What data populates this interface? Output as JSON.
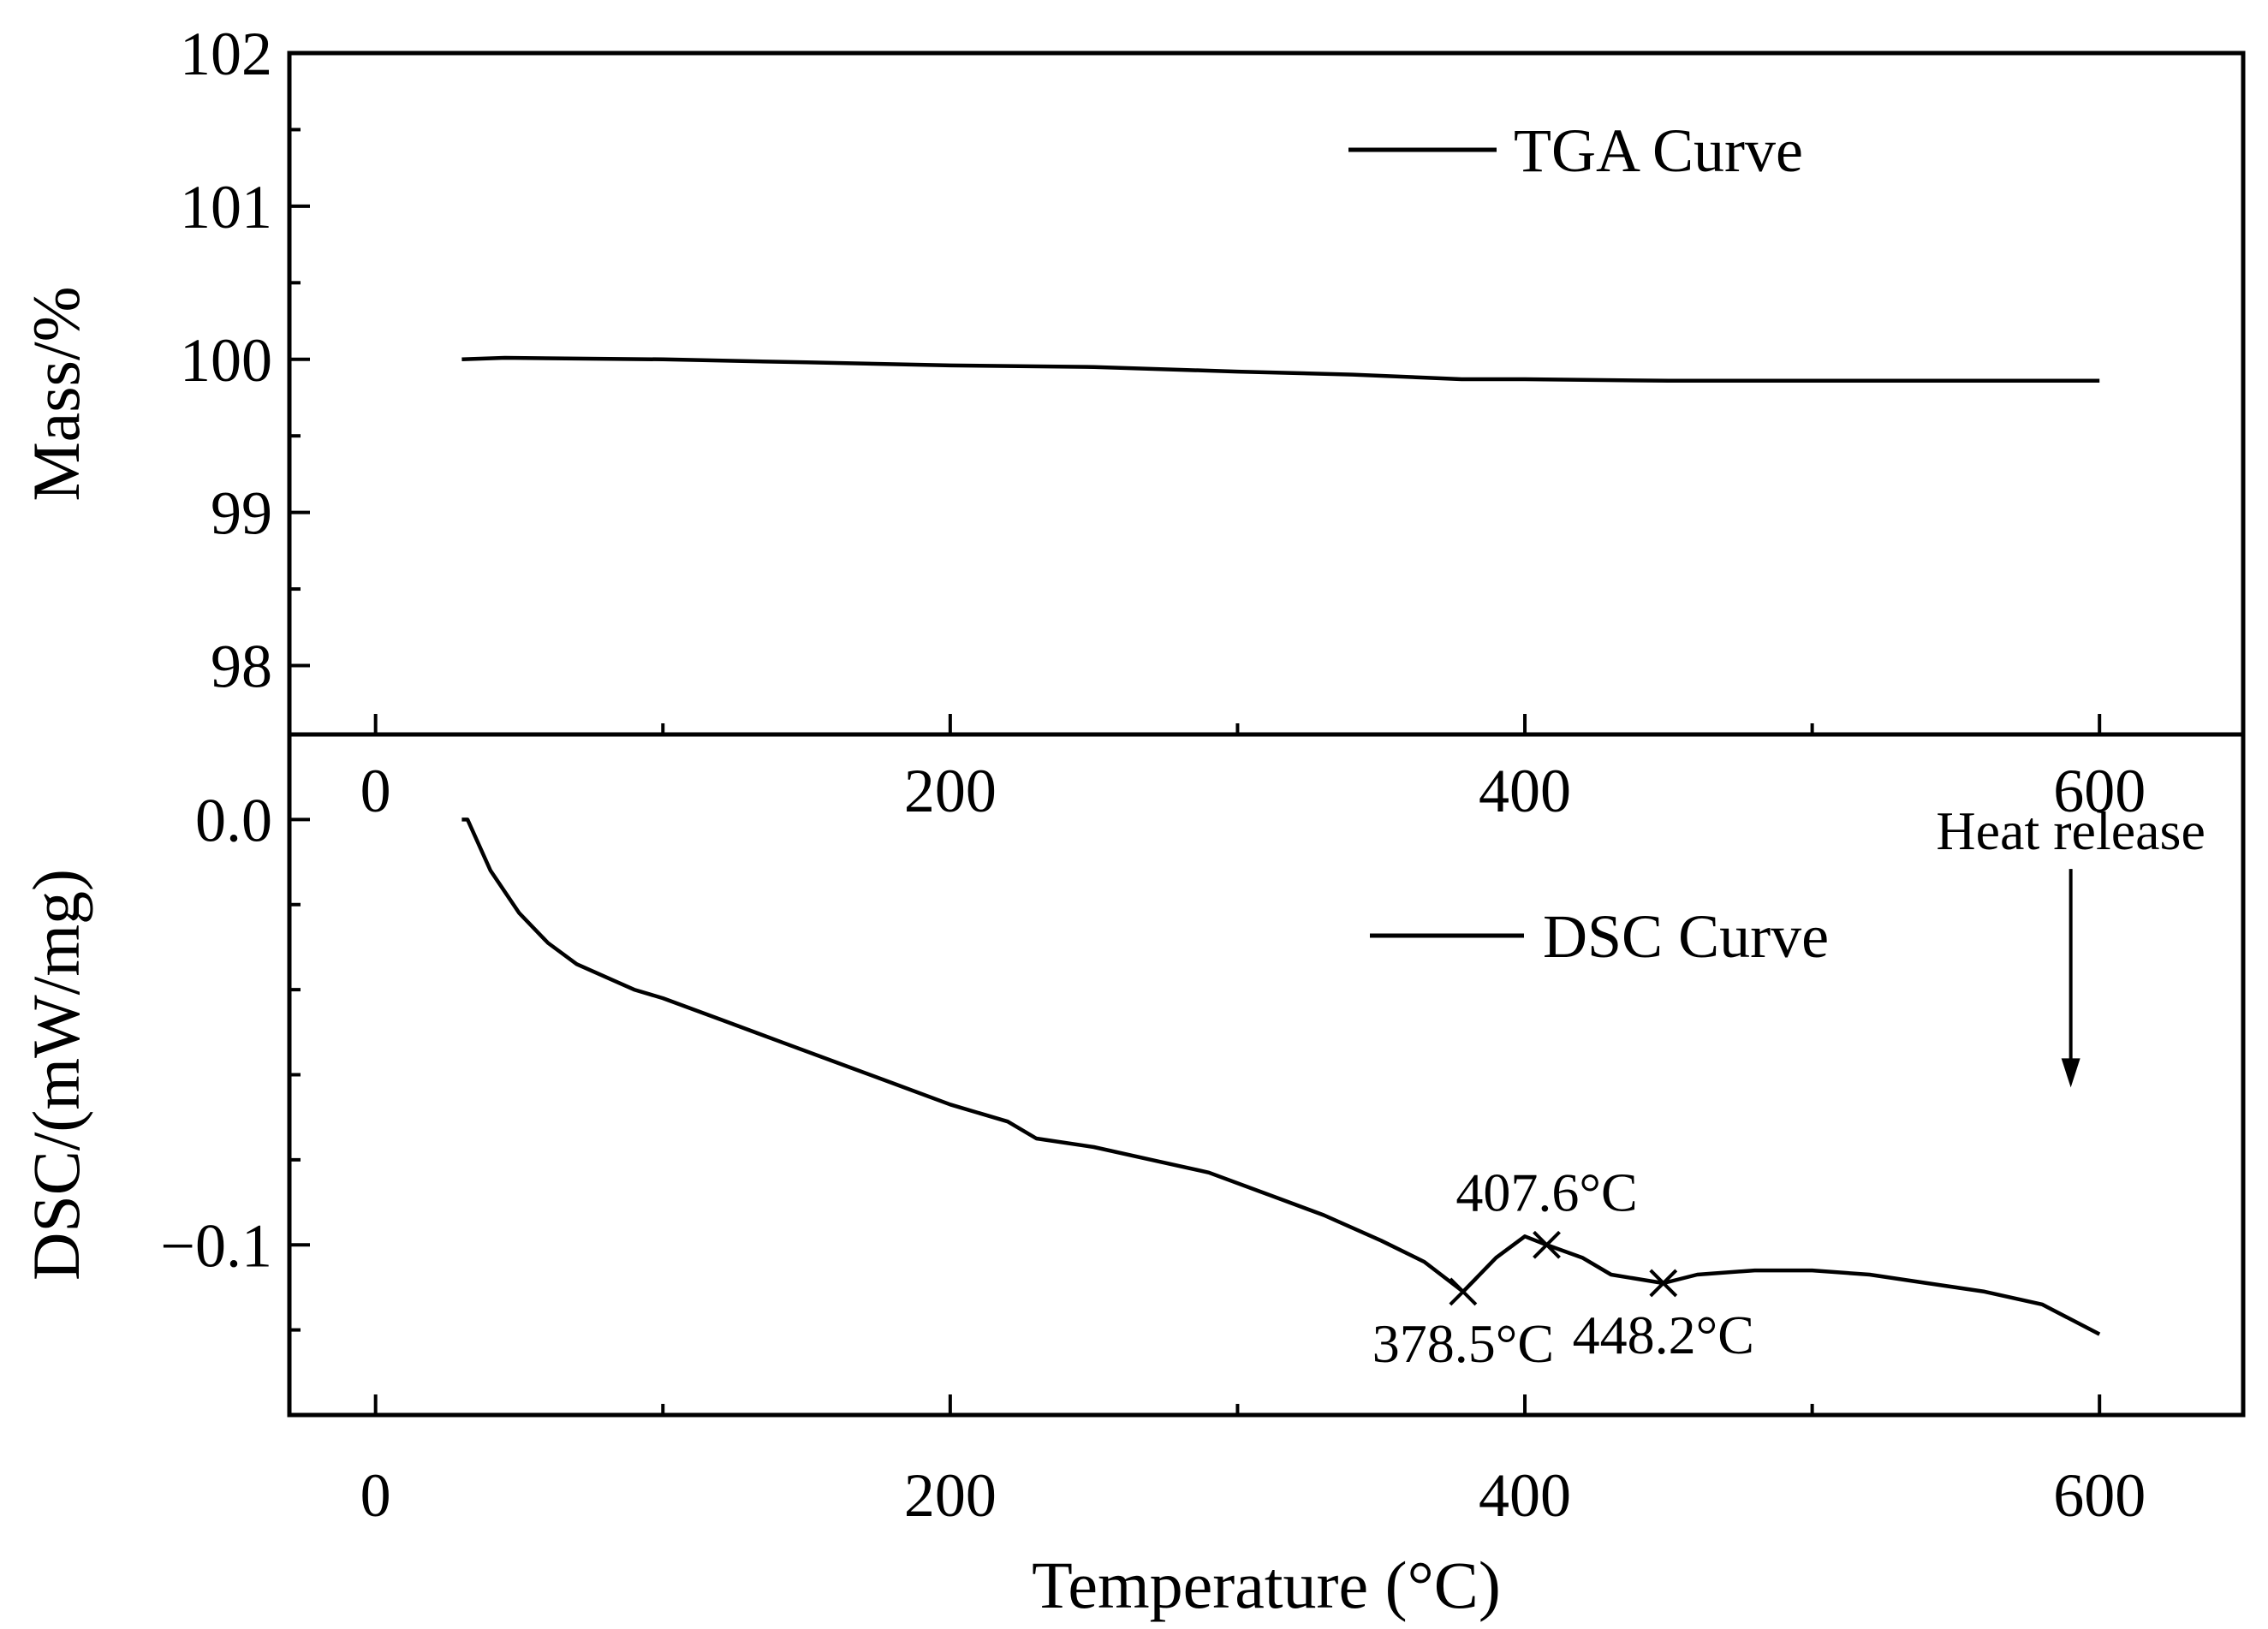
{
  "chart_data": [
    {
      "type": "line",
      "panel": "top",
      "ylabel": "Mass/%",
      "xlabel": "",
      "xlim": [
        -30,
        650
      ],
      "ylim": [
        97.55,
        102
      ],
      "x_ticks": [
        0,
        200,
        400,
        600
      ],
      "x_tick_labels": [
        "0",
        "200",
        "400",
        "600"
      ],
      "y_ticks": [
        98,
        99,
        100,
        101,
        102
      ],
      "y_tick_labels": [
        "98",
        "99",
        "100",
        "101",
        "102"
      ],
      "legend": {
        "label": "TGA Curve",
        "position": "top-center"
      },
      "series": [
        {
          "name": "TGA Curve",
          "x": [
            30,
            45,
            100,
            150,
            200,
            250,
            300,
            340,
            378,
            400,
            450,
            500,
            550,
            600
          ],
          "y": [
            100.0,
            100.01,
            100.0,
            99.98,
            99.96,
            99.95,
            99.92,
            99.9,
            99.87,
            99.87,
            99.86,
            99.86,
            99.86,
            99.86
          ]
        }
      ]
    },
    {
      "type": "line",
      "panel": "bottom",
      "ylabel": "DSC/(mW/mg)",
      "xlabel": "Temperature (°C)",
      "xlim": [
        -30,
        650
      ],
      "ylim": [
        -0.14,
        0.02
      ],
      "x_ticks": [
        0,
        200,
        400,
        600
      ],
      "x_tick_labels": [
        "0",
        "200",
        "400",
        "600"
      ],
      "y_ticks": [
        0.0,
        -0.1
      ],
      "y_tick_labels": [
        "0.0",
        "−0.1"
      ],
      "legend": {
        "label": "DSC Curve",
        "position": "top-right"
      },
      "series": [
        {
          "name": "DSC Curve",
          "x": [
            30,
            32,
            40,
            50,
            60,
            70,
            80,
            90,
            100,
            120,
            140,
            160,
            180,
            200,
            220,
            230,
            250,
            270,
            290,
            310,
            330,
            350,
            365,
            378.5,
            390,
            400,
            407.6,
            420,
            430,
            448.2,
            460,
            480,
            500,
            520,
            540,
            560,
            580,
            600
          ],
          "y": [
            0.0,
            0.0,
            -0.012,
            -0.022,
            -0.029,
            -0.034,
            -0.037,
            -0.04,
            -0.042,
            -0.047,
            -0.052,
            -0.057,
            -0.062,
            -0.067,
            -0.071,
            -0.075,
            -0.077,
            -0.08,
            -0.083,
            -0.088,
            -0.093,
            -0.099,
            -0.104,
            -0.111,
            -0.103,
            -0.098,
            -0.1,
            -0.103,
            -0.107,
            -0.109,
            -0.107,
            -0.106,
            -0.106,
            -0.107,
            -0.109,
            -0.111,
            -0.114,
            -0.121
          ]
        }
      ],
      "annotations": [
        {
          "label": "378.5°C",
          "x": 378.5,
          "y": -0.111,
          "marker": "x",
          "label_side": "below"
        },
        {
          "label": "407.6°C",
          "x": 407.6,
          "y": -0.1,
          "marker": "x",
          "label_side": "above"
        },
        {
          "label": "448.2°C",
          "x": 448.2,
          "y": -0.109,
          "marker": "x",
          "label_side": "below"
        }
      ],
      "arrow_note": {
        "label": "Heat release",
        "x": 590,
        "y_top": -0.01,
        "y_bottom": -0.063
      }
    }
  ]
}
